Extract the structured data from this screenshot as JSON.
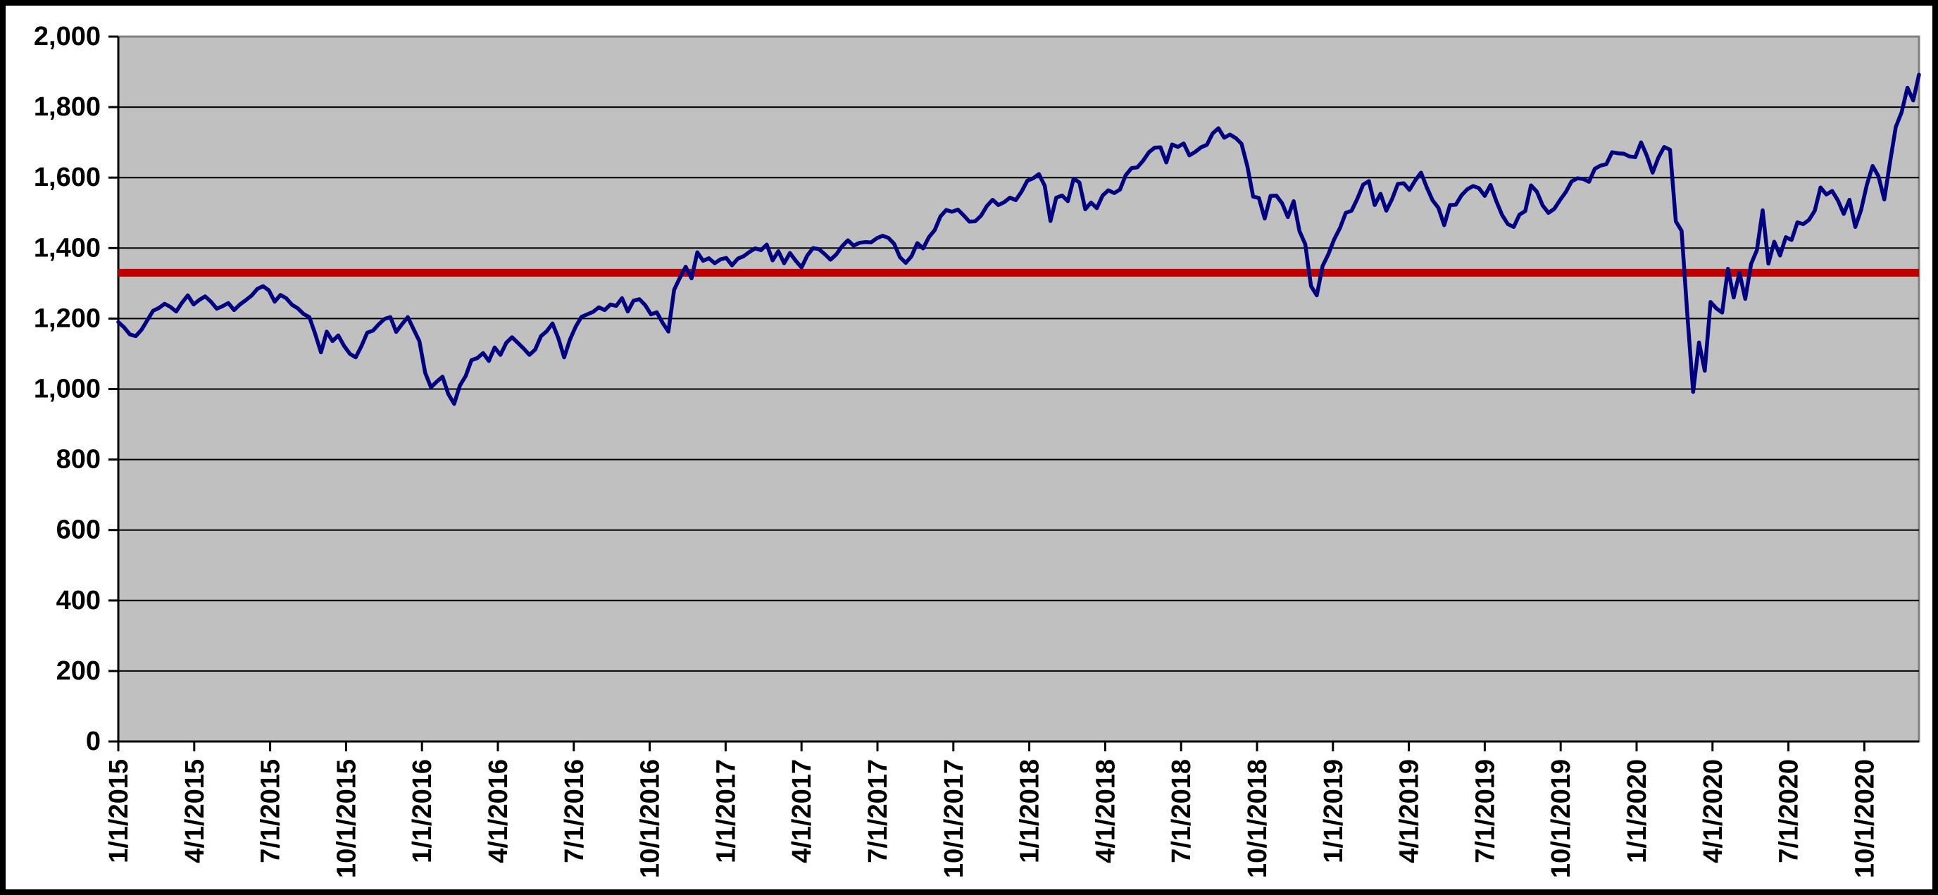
{
  "chart_data": {
    "type": "line",
    "y_axis": {
      "min": 0,
      "max": 2000,
      "step": 200,
      "tick_labels": [
        "0",
        "200",
        "400",
        "600",
        "800",
        "1,000",
        "1,200",
        "1,400",
        "1,600",
        "1,800",
        "2,000"
      ]
    },
    "x_axis": {
      "tick_labels": [
        "1/1/2015",
        "4/1/2015",
        "7/1/2015",
        "10/1/2015",
        "1/1/2016",
        "4/1/2016",
        "7/1/2016",
        "10/1/2016",
        "1/1/2017",
        "4/1/2017",
        "7/1/2017",
        "10/1/2017",
        "1/1/2018",
        "4/1/2018",
        "7/1/2018",
        "10/1/2018",
        "1/1/2019",
        "4/1/2019",
        "7/1/2019",
        "10/1/2019",
        "1/1/2020",
        "4/1/2020",
        "7/1/2020",
        "10/1/2020"
      ],
      "ticks_per_year": 4,
      "span_years": 5.93
    },
    "series": [
      {
        "name": "index-line",
        "color": "#000080",
        "stroke_width": 5.5,
        "values": [
          1190,
          1175,
          1155,
          1150,
          1168,
          1195,
          1222,
          1230,
          1242,
          1233,
          1220,
          1245,
          1266,
          1240,
          1253,
          1263,
          1248,
          1228,
          1235,
          1244,
          1224,
          1240,
          1252,
          1265,
          1284,
          1292,
          1280,
          1248,
          1267,
          1258,
          1239,
          1229,
          1213,
          1204,
          1157,
          1104,
          1163,
          1136,
          1152,
          1122,
          1100,
          1090,
          1122,
          1160,
          1166,
          1184,
          1199,
          1204,
          1162,
          1184,
          1204,
          1170,
          1136,
          1046,
          1005,
          1021,
          1035,
          986,
          958,
          1010,
          1037,
          1082,
          1088,
          1102,
          1080,
          1118,
          1097,
          1131,
          1147,
          1131,
          1115,
          1097,
          1112,
          1150,
          1164,
          1186,
          1144,
          1090,
          1140,
          1177,
          1205,
          1212,
          1219,
          1232,
          1224,
          1240,
          1236,
          1258,
          1220,
          1251,
          1255,
          1238,
          1212,
          1218,
          1188,
          1163,
          1282,
          1316,
          1347,
          1314,
          1388,
          1364,
          1371,
          1357,
          1368,
          1372,
          1351,
          1370,
          1377,
          1389,
          1399,
          1394,
          1410,
          1365,
          1391,
          1357,
          1386,
          1364,
          1345,
          1379,
          1400,
          1397,
          1383,
          1367,
          1382,
          1405,
          1422,
          1407,
          1415,
          1417,
          1416,
          1428,
          1435,
          1429,
          1412,
          1374,
          1358,
          1377,
          1414,
          1399,
          1431,
          1451,
          1490,
          1508,
          1503,
          1509,
          1493,
          1475,
          1476,
          1492,
          1519,
          1537,
          1522,
          1530,
          1543,
          1536,
          1560,
          1591,
          1598,
          1610,
          1577,
          1477,
          1543,
          1549,
          1533,
          1597,
          1586,
          1510,
          1529,
          1513,
          1549,
          1564,
          1556,
          1566,
          1607,
          1627,
          1629,
          1648,
          1672,
          1685,
          1686,
          1643,
          1694,
          1687,
          1697,
          1663,
          1673,
          1686,
          1693,
          1725,
          1740,
          1713,
          1722,
          1712,
          1696,
          1632,
          1546,
          1542,
          1484,
          1548,
          1549,
          1527,
          1488,
          1533,
          1448,
          1411,
          1292,
          1266,
          1349,
          1383,
          1425,
          1457,
          1500,
          1506,
          1540,
          1580,
          1590,
          1522,
          1554,
          1506,
          1539,
          1582,
          1584,
          1565,
          1592,
          1614,
          1572,
          1535,
          1514,
          1465,
          1522,
          1523,
          1550,
          1567,
          1576,
          1570,
          1548,
          1579,
          1533,
          1494,
          1468,
          1460,
          1495,
          1505,
          1578,
          1560,
          1521,
          1500,
          1511,
          1536,
          1559,
          1589,
          1598,
          1596,
          1588,
          1625,
          1634,
          1638,
          1672,
          1669,
          1668,
          1660,
          1658,
          1700,
          1662,
          1614,
          1657,
          1687,
          1679,
          1476,
          1449,
          1210,
          992,
          1132,
          1052,
          1247,
          1229,
          1217,
          1341,
          1260,
          1330,
          1256,
          1355,
          1394,
          1507,
          1356,
          1418,
          1379,
          1431,
          1423,
          1473,
          1468,
          1480,
          1506,
          1572,
          1552,
          1562,
          1535,
          1497,
          1537,
          1460,
          1508,
          1580,
          1633,
          1604,
          1538,
          1644,
          1744,
          1785,
          1855,
          1819,
          1892
        ]
      }
    ],
    "reference_line": {
      "value": 1330,
      "color": "#C00000",
      "stroke_width": 11
    },
    "grid": true,
    "legend": "none",
    "style": {
      "background": "#FFFFFF",
      "frame_border_color": "#000000",
      "plot_background": "#C0C0C0",
      "plot_border_color": "#808080",
      "grid_color": "#000000",
      "axis_color": "#000000",
      "text_color": "#000000"
    }
  }
}
